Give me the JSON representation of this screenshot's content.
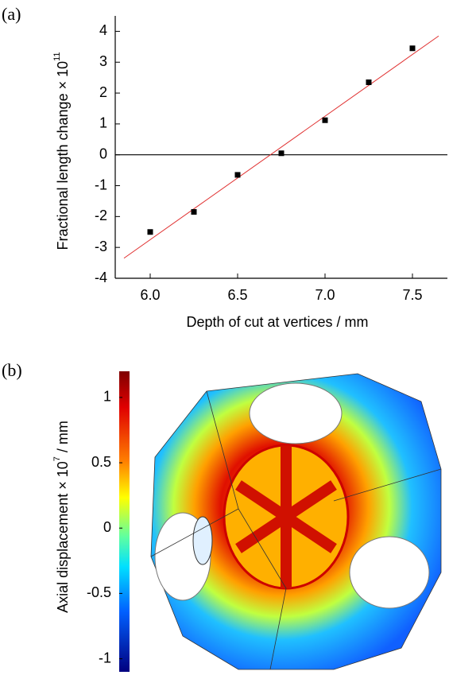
{
  "chart_data": [
    {
      "type": "scatter",
      "panel_label": "(a)",
      "xlabel": "Depth of cut at vertices / mm",
      "ylabel": "Fractional length change × 10",
      "ylabel_exponent": "11",
      "xlim": [
        5.8,
        7.7
      ],
      "ylim": [
        -4,
        4.5
      ],
      "xticks": [
        {
          "value": 6,
          "label": "6.0"
        },
        {
          "value": 6.5,
          "label": "6.5"
        },
        {
          "value": 7,
          "label": "7.0"
        },
        {
          "value": 7.5,
          "label": "7.5"
        }
      ],
      "yticks": [
        -4,
        -3,
        -2,
        -1,
        0,
        1,
        2,
        3,
        4
      ],
      "hline": 0,
      "points": {
        "x": [
          6.0,
          6.25,
          6.5,
          6.75,
          7.0,
          7.25,
          7.5
        ],
        "y": [
          -2.5,
          -1.85,
          -0.65,
          0.05,
          1.12,
          2.35,
          3.45
        ],
        "color": "#000000"
      },
      "fit": {
        "x": [
          5.85,
          7.65
        ],
        "y": [
          -3.35,
          3.85
        ],
        "color": "#e03030"
      }
    },
    {
      "type": "colorbar",
      "panel_label": "(b)",
      "label": "Axial displacement × 10",
      "label_exponent": "7",
      "label_unit": " / mm",
      "clim": [
        -1.1,
        1.2
      ],
      "ticks": [
        -1,
        -0.5,
        0,
        0.5,
        1
      ]
    }
  ]
}
